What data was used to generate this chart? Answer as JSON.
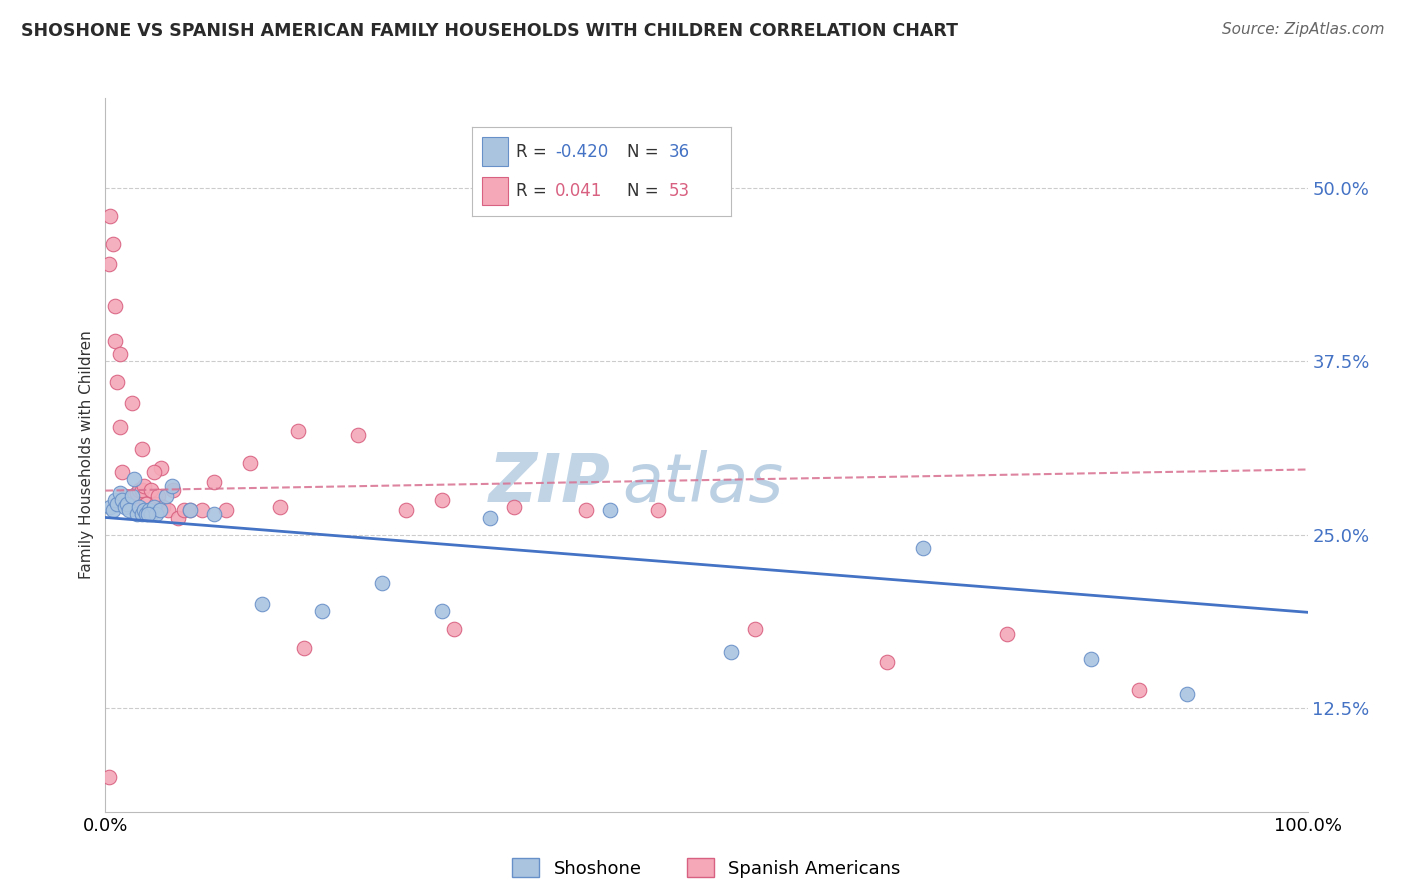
{
  "title": "SHOSHONE VS SPANISH AMERICAN FAMILY HOUSEHOLDS WITH CHILDREN CORRELATION CHART",
  "source": "Source: ZipAtlas.com",
  "ylabel": "Family Households with Children",
  "xlim": [
    0.0,
    1.0
  ],
  "ylim": [
    0.05,
    0.565
  ],
  "ytick_values": [
    0.125,
    0.25,
    0.375,
    0.5
  ],
  "ytick_labels": [
    "12.5%",
    "25.0%",
    "37.5%",
    "50.0%"
  ],
  "xtick_values": [
    0.0,
    1.0
  ],
  "xtick_labels": [
    "0.0%",
    "100.0%"
  ],
  "shoshone_color": "#aac4e0",
  "shoshone_edge": "#6890c8",
  "spanish_color": "#f4a8b8",
  "spanish_edge": "#d86080",
  "line_shoshone_color": "#4472c4",
  "line_spanish_color": "#d87090",
  "watermark_zip_color": "#c8d8e8",
  "watermark_atlas_color": "#b8cce0",
  "shoshone_x": [
    0.004,
    0.006,
    0.008,
    0.01,
    0.012,
    0.014,
    0.016,
    0.018,
    0.02,
    0.022,
    0.024,
    0.026,
    0.028,
    0.03,
    0.032,
    0.034,
    0.036,
    0.038,
    0.04,
    0.042,
    0.045,
    0.05,
    0.055,
    0.07,
    0.09,
    0.13,
    0.18,
    0.23,
    0.28,
    0.32,
    0.42,
    0.52,
    0.68,
    0.82,
    0.9,
    0.035
  ],
  "shoshone_y": [
    0.27,
    0.268,
    0.275,
    0.272,
    0.28,
    0.275,
    0.27,
    0.272,
    0.268,
    0.278,
    0.29,
    0.265,
    0.27,
    0.265,
    0.268,
    0.265,
    0.268,
    0.265,
    0.27,
    0.265,
    0.268,
    0.278,
    0.285,
    0.268,
    0.265,
    0.2,
    0.195,
    0.215,
    0.195,
    0.262,
    0.268,
    0.165,
    0.24,
    0.16,
    0.135,
    0.265
  ],
  "spanish_x": [
    0.003,
    0.006,
    0.008,
    0.01,
    0.012,
    0.014,
    0.016,
    0.018,
    0.02,
    0.022,
    0.024,
    0.026,
    0.028,
    0.03,
    0.032,
    0.034,
    0.036,
    0.038,
    0.04,
    0.042,
    0.044,
    0.046,
    0.048,
    0.052,
    0.056,
    0.06,
    0.065,
    0.07,
    0.08,
    0.09,
    0.1,
    0.12,
    0.145,
    0.165,
    0.21,
    0.25,
    0.29,
    0.34,
    0.4,
    0.46,
    0.54,
    0.65,
    0.75,
    0.86,
    0.004,
    0.008,
    0.012,
    0.022,
    0.03,
    0.04,
    0.16,
    0.28,
    0.003
  ],
  "spanish_y": [
    0.445,
    0.46,
    0.39,
    0.36,
    0.328,
    0.295,
    0.278,
    0.272,
    0.275,
    0.272,
    0.278,
    0.28,
    0.282,
    0.282,
    0.285,
    0.272,
    0.268,
    0.282,
    0.268,
    0.272,
    0.278,
    0.298,
    0.27,
    0.268,
    0.282,
    0.262,
    0.268,
    0.268,
    0.268,
    0.288,
    0.268,
    0.302,
    0.27,
    0.168,
    0.322,
    0.268,
    0.182,
    0.27,
    0.268,
    0.268,
    0.182,
    0.158,
    0.178,
    0.138,
    0.48,
    0.415,
    0.38,
    0.345,
    0.312,
    0.295,
    0.325,
    0.275,
    0.075
  ]
}
